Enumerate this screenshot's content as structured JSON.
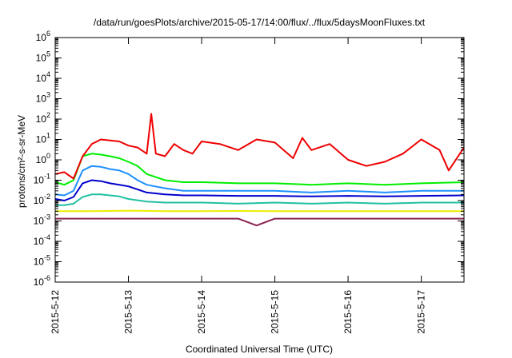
{
  "chart_data": {
    "type": "line",
    "title": "/data/run/goesPlots/archive/2015-05-17/14:00/flux/../flux/5daysMoonFluxes.txt",
    "xlabel": "Coordinated Universal Time (UTC)",
    "ylabel": "protons/cm²-s-sr-MeV",
    "y_scale": "log",
    "ylim_exponent": [
      -6,
      6
    ],
    "yticks": [
      {
        "base": "10",
        "exp": "-6",
        "value": 1e-06
      },
      {
        "base": "10",
        "exp": "-5",
        "value": 1e-05
      },
      {
        "base": "10",
        "exp": "-4",
        "value": 0.0001
      },
      {
        "base": "10",
        "exp": "-3",
        "value": 0.001
      },
      {
        "base": "10",
        "exp": "-2",
        "value": 0.01
      },
      {
        "base": "10",
        "exp": "-1",
        "value": 0.1
      },
      {
        "base": "10",
        "exp": "0",
        "value": 1
      },
      {
        "base": "10",
        "exp": "1",
        "value": 10
      },
      {
        "base": "10",
        "exp": "2",
        "value": 100
      },
      {
        "base": "10",
        "exp": "3",
        "value": 1000
      },
      {
        "base": "10",
        "exp": "4",
        "value": 10000
      },
      {
        "base": "10",
        "exp": "5",
        "value": 100000
      },
      {
        "base": "10",
        "exp": "6",
        "value": 1000000
      }
    ],
    "xlim": [
      "2015-05-12T00:00",
      "2015-05-17T14:00"
    ],
    "xticks": [
      "2015-5-12",
      "2015-5-13",
      "2015-5-14",
      "2015-5-15",
      "2015-5-16",
      "2015-5-17"
    ],
    "grid": false,
    "legend": "none",
    "series": [
      {
        "color": "#ee0000",
        "x": [
          "2015-05-12T00:00",
          "2015-05-12T03:00",
          "2015-05-12T06:00",
          "2015-05-12T09:00",
          "2015-05-12T12:00",
          "2015-05-12T15:00",
          "2015-05-12T18:00",
          "2015-05-12T21:00",
          "2015-05-13T00:00",
          "2015-05-13T03:00",
          "2015-05-13T06:00",
          "2015-05-13T07:30",
          "2015-05-13T09:00",
          "2015-05-13T12:00",
          "2015-05-13T15:00",
          "2015-05-13T18:00",
          "2015-05-13T21:00",
          "2015-05-14T00:00",
          "2015-05-14T06:00",
          "2015-05-14T12:00",
          "2015-05-14T18:00",
          "2015-05-15T00:00",
          "2015-05-15T06:00",
          "2015-05-15T09:00",
          "2015-05-15T12:00",
          "2015-05-15T18:00",
          "2015-05-16T00:00",
          "2015-05-16T06:00",
          "2015-05-16T12:00",
          "2015-05-16T18:00",
          "2015-05-17T00:00",
          "2015-05-17T06:00",
          "2015-05-17T09:00",
          "2015-05-17T14:00"
        ],
        "y": [
          0.2,
          0.25,
          0.12,
          1.5,
          6,
          10,
          9,
          8,
          5,
          4,
          2,
          180,
          2,
          1.5,
          6,
          3,
          2,
          8,
          6,
          3,
          10,
          7,
          1.2,
          12,
          3,
          6,
          1.0,
          0.5,
          0.8,
          2,
          10,
          3,
          0.3,
          4
        ]
      },
      {
        "color": "#00ee00",
        "x": [
          "2015-05-12T00:00",
          "2015-05-12T03:00",
          "2015-05-12T06:00",
          "2015-05-12T09:00",
          "2015-05-12T12:00",
          "2015-05-12T15:00",
          "2015-05-12T18:00",
          "2015-05-12T21:00",
          "2015-05-13T00:00",
          "2015-05-13T03:00",
          "2015-05-13T06:00",
          "2015-05-13T12:00",
          "2015-05-13T18:00",
          "2015-05-14T00:00",
          "2015-05-14T12:00",
          "2015-05-15T00:00",
          "2015-05-15T12:00",
          "2015-05-16T00:00",
          "2015-05-16T12:00",
          "2015-05-17T00:00",
          "2015-05-17T14:00"
        ],
        "y": [
          0.08,
          0.06,
          0.1,
          1.5,
          2,
          1.8,
          1.5,
          1.2,
          0.8,
          0.5,
          0.2,
          0.1,
          0.08,
          0.08,
          0.07,
          0.07,
          0.06,
          0.07,
          0.06,
          0.07,
          0.08
        ]
      },
      {
        "color": "#1e90ff",
        "x": [
          "2015-05-12T00:00",
          "2015-05-12T03:00",
          "2015-05-12T06:00",
          "2015-05-12T09:00",
          "2015-05-12T12:00",
          "2015-05-12T15:00",
          "2015-05-12T18:00",
          "2015-05-12T21:00",
          "2015-05-13T00:00",
          "2015-05-13T03:00",
          "2015-05-13T06:00",
          "2015-05-13T12:00",
          "2015-05-13T18:00",
          "2015-05-14T00:00",
          "2015-05-14T12:00",
          "2015-05-15T00:00",
          "2015-05-15T12:00",
          "2015-05-16T00:00",
          "2015-05-16T12:00",
          "2015-05-17T00:00",
          "2015-05-17T14:00"
        ],
        "y": [
          0.02,
          0.018,
          0.03,
          0.3,
          0.5,
          0.45,
          0.35,
          0.3,
          0.2,
          0.1,
          0.06,
          0.04,
          0.03,
          0.03,
          0.03,
          0.03,
          0.025,
          0.03,
          0.025,
          0.03,
          0.03
        ]
      },
      {
        "color": "#0000cc",
        "x": [
          "2015-05-12T00:00",
          "2015-05-12T03:00",
          "2015-05-12T06:00",
          "2015-05-12T09:00",
          "2015-05-12T12:00",
          "2015-05-12T15:00",
          "2015-05-12T18:00",
          "2015-05-12T21:00",
          "2015-05-13T00:00",
          "2015-05-13T03:00",
          "2015-05-13T06:00",
          "2015-05-13T12:00",
          "2015-05-13T18:00",
          "2015-05-14T00:00",
          "2015-05-14T12:00",
          "2015-05-15T00:00",
          "2015-05-15T12:00",
          "2015-05-16T00:00",
          "2015-05-16T12:00",
          "2015-05-17T00:00",
          "2015-05-17T14:00"
        ],
        "y": [
          0.012,
          0.01,
          0.015,
          0.07,
          0.1,
          0.09,
          0.07,
          0.06,
          0.05,
          0.035,
          0.025,
          0.02,
          0.018,
          0.018,
          0.017,
          0.017,
          0.016,
          0.017,
          0.016,
          0.017,
          0.018
        ]
      },
      {
        "color": "#20c0a0",
        "x": [
          "2015-05-12T00:00",
          "2015-05-12T03:00",
          "2015-05-12T06:00",
          "2015-05-12T09:00",
          "2015-05-12T12:00",
          "2015-05-12T15:00",
          "2015-05-12T18:00",
          "2015-05-12T21:00",
          "2015-05-13T00:00",
          "2015-05-13T06:00",
          "2015-05-13T12:00",
          "2015-05-14T00:00",
          "2015-05-14T12:00",
          "2015-05-15T00:00",
          "2015-05-15T12:00",
          "2015-05-16T00:00",
          "2015-05-16T12:00",
          "2015-05-17T00:00",
          "2015-05-17T14:00"
        ],
        "y": [
          0.006,
          0.006,
          0.007,
          0.015,
          0.02,
          0.02,
          0.018,
          0.016,
          0.012,
          0.009,
          0.008,
          0.008,
          0.007,
          0.008,
          0.007,
          0.008,
          0.007,
          0.008,
          0.008
        ]
      },
      {
        "color": "#eeee00",
        "x": [
          "2015-05-12T00:00",
          "2015-05-12T12:00",
          "2015-05-13T00:00",
          "2015-05-13T12:00",
          "2015-05-14T00:00",
          "2015-05-14T12:00",
          "2015-05-15T00:00",
          "2015-05-15T12:00",
          "2015-05-16T00:00",
          "2015-05-16T12:00",
          "2015-05-17T00:00",
          "2015-05-17T14:00"
        ],
        "y": [
          0.003,
          0.003,
          0.0032,
          0.003,
          0.003,
          0.0031,
          0.003,
          0.003,
          0.003,
          0.003,
          0.003,
          0.003
        ]
      },
      {
        "color": "#8b2252",
        "x": [
          "2015-05-12T00:00",
          "2015-05-12T12:00",
          "2015-05-13T00:00",
          "2015-05-13T12:00",
          "2015-05-14T00:00",
          "2015-05-14T12:00",
          "2015-05-14T18:00",
          "2015-05-15T00:00",
          "2015-05-15T12:00",
          "2015-05-16T00:00",
          "2015-05-16T12:00",
          "2015-05-17T00:00",
          "2015-05-17T14:00"
        ],
        "y": [
          0.0013,
          0.0013,
          0.0013,
          0.0013,
          0.0013,
          0.0013,
          0.0006,
          0.0013,
          0.0013,
          0.0013,
          0.0013,
          0.0013,
          0.0013
        ]
      }
    ]
  }
}
